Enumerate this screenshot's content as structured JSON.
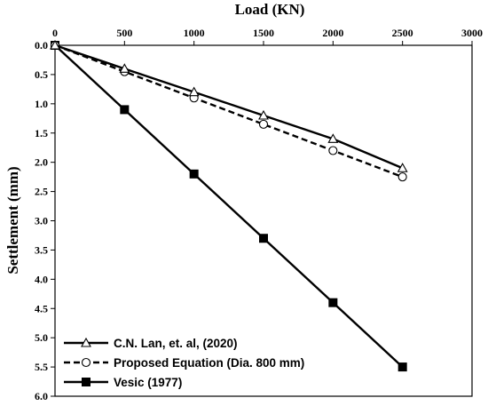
{
  "chart_data": {
    "type": "line",
    "title": "",
    "xlabel": "Load (KN)",
    "ylabel": "Settlement (mm)",
    "xlim": [
      0,
      3000
    ],
    "ylim": [
      0,
      6.0
    ],
    "x_axis_position": "top",
    "y_axis_inverted": true,
    "grid": false,
    "legend_position": "bottom-left",
    "xticks": [
      "0",
      "500",
      "1000",
      "1500",
      "2000",
      "2500",
      "3000"
    ],
    "yticks": [
      "0.0",
      "0.5",
      "1.0",
      "1.5",
      "2.0",
      "2.5",
      "3.0",
      "3.5",
      "4.0",
      "4.5",
      "5.0",
      "5.5",
      "6.0"
    ],
    "series": [
      {
        "name": "C.N. Lan, et. al, (2020)",
        "line_style": "solid",
        "marker": "open-triangle",
        "color": "#000000",
        "x": [
          0,
          500,
          1000,
          1500,
          2000,
          2500
        ],
        "y": [
          0,
          0.4,
          0.8,
          1.2,
          1.6,
          2.1
        ]
      },
      {
        "name": "Proposed Equation (Dia. 800 mm)",
        "line_style": "dashed",
        "marker": "open-circle",
        "color": "#000000",
        "x": [
          0,
          500,
          1000,
          1500,
          2000,
          2500
        ],
        "y": [
          0,
          0.45,
          0.9,
          1.35,
          1.8,
          2.25
        ]
      },
      {
        "name": "Vesic (1977)",
        "line_style": "solid",
        "marker": "filled-square",
        "color": "#000000",
        "x": [
          0,
          500,
          1000,
          1500,
          2000,
          2500
        ],
        "y": [
          0,
          1.1,
          2.2,
          3.3,
          4.4,
          5.5
        ]
      }
    ]
  }
}
